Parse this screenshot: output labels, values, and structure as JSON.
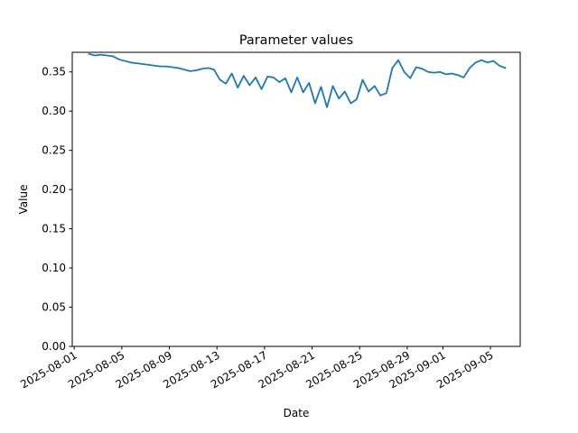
{
  "chart_data": {
    "type": "line",
    "title": "Parameter values",
    "xlabel": "Date",
    "ylabel": "Value",
    "grid": false,
    "legend": "none",
    "color": "#1f77b4",
    "xlim": [
      "2025-07-31T20:00",
      "2025-09-07T12:00"
    ],
    "ylim": [
      0,
      0.375
    ],
    "x_ticks": [
      {
        "date": "2025-08-01",
        "label": "2025-08-01"
      },
      {
        "date": "2025-08-05",
        "label": "2025-08-05"
      },
      {
        "date": "2025-08-09",
        "label": "2025-08-09"
      },
      {
        "date": "2025-08-13",
        "label": "2025-08-13"
      },
      {
        "date": "2025-08-17",
        "label": "2025-08-17"
      },
      {
        "date": "2025-08-21",
        "label": "2025-08-21"
      },
      {
        "date": "2025-08-25",
        "label": "2025-08-25"
      },
      {
        "date": "2025-08-29",
        "label": "2025-08-29"
      },
      {
        "date": "2025-09-01",
        "label": "2025-09-01"
      },
      {
        "date": "2025-09-05",
        "label": "2025-09-05"
      }
    ],
    "y_ticks": [
      {
        "value": 0.0,
        "label": "0.00"
      },
      {
        "value": 0.05,
        "label": "0.05"
      },
      {
        "value": 0.1,
        "label": "0.10"
      },
      {
        "value": 0.15,
        "label": "0.15"
      },
      {
        "value": 0.2,
        "label": "0.20"
      },
      {
        "value": 0.25,
        "label": "0.25"
      },
      {
        "value": 0.3,
        "label": "0.30"
      },
      {
        "value": 0.35,
        "label": "0.35"
      }
    ],
    "series": [
      {
        "x": [
          "2025-08-02T06:00",
          "2025-08-02T18:00",
          "2025-08-03T06:00",
          "2025-08-03T18:00",
          "2025-08-04T06:00",
          "2025-08-04T18:00",
          "2025-08-05T06:00",
          "2025-08-05T18:00",
          "2025-08-06T06:00",
          "2025-08-06T18:00",
          "2025-08-07T06:00",
          "2025-08-07T18:00",
          "2025-08-08T06:00",
          "2025-08-08T18:00",
          "2025-08-09T06:00",
          "2025-08-09T18:00",
          "2025-08-10T06:00",
          "2025-08-10T18:00",
          "2025-08-11T06:00",
          "2025-08-11T18:00",
          "2025-08-12T06:00",
          "2025-08-12T18:00",
          "2025-08-13T06:00",
          "2025-08-13T18:00",
          "2025-08-14T06:00",
          "2025-08-14T18:00",
          "2025-08-15T06:00",
          "2025-08-15T18:00",
          "2025-08-16T06:00",
          "2025-08-16T18:00",
          "2025-08-17T06:00",
          "2025-08-17T18:00",
          "2025-08-18T06:00",
          "2025-08-18T18:00",
          "2025-08-19T06:00",
          "2025-08-19T18:00",
          "2025-08-20T06:00",
          "2025-08-20T18:00",
          "2025-08-21T06:00",
          "2025-08-21T18:00",
          "2025-08-22T06:00",
          "2025-08-22T18:00",
          "2025-08-23T06:00",
          "2025-08-23T18:00",
          "2025-08-24T06:00",
          "2025-08-24T18:00",
          "2025-08-25T06:00",
          "2025-08-25T18:00",
          "2025-08-26T06:00",
          "2025-08-26T18:00",
          "2025-08-27T06:00",
          "2025-08-27T18:00",
          "2025-08-28T06:00",
          "2025-08-28T18:00",
          "2025-08-29T06:00",
          "2025-08-29T18:00",
          "2025-08-30T06:00",
          "2025-08-30T18:00",
          "2025-08-31T06:00",
          "2025-08-31T18:00",
          "2025-09-01T06:00",
          "2025-09-01T18:00",
          "2025-09-02T06:00",
          "2025-09-02T18:00",
          "2025-09-03T06:00",
          "2025-09-03T18:00",
          "2025-09-04T06:00",
          "2025-09-04T18:00",
          "2025-09-05T06:00",
          "2025-09-05T18:00",
          "2025-09-06T06:00"
        ],
        "y": [
          0.373,
          0.371,
          0.372,
          0.371,
          0.37,
          0.366,
          0.364,
          0.362,
          0.361,
          0.36,
          0.359,
          0.358,
          0.357,
          0.357,
          0.356,
          0.355,
          0.353,
          0.351,
          0.352,
          0.354,
          0.355,
          0.353,
          0.34,
          0.335,
          0.348,
          0.33,
          0.345,
          0.333,
          0.343,
          0.328,
          0.344,
          0.343,
          0.337,
          0.342,
          0.324,
          0.343,
          0.324,
          0.336,
          0.31,
          0.331,
          0.305,
          0.332,
          0.316,
          0.325,
          0.31,
          0.315,
          0.34,
          0.325,
          0.332,
          0.32,
          0.323,
          0.355,
          0.365,
          0.35,
          0.342,
          0.356,
          0.354,
          0.35,
          0.349,
          0.35,
          0.347,
          0.348,
          0.346,
          0.343,
          0.355,
          0.362,
          0.365,
          0.362,
          0.364,
          0.358,
          0.355
        ]
      }
    ]
  }
}
